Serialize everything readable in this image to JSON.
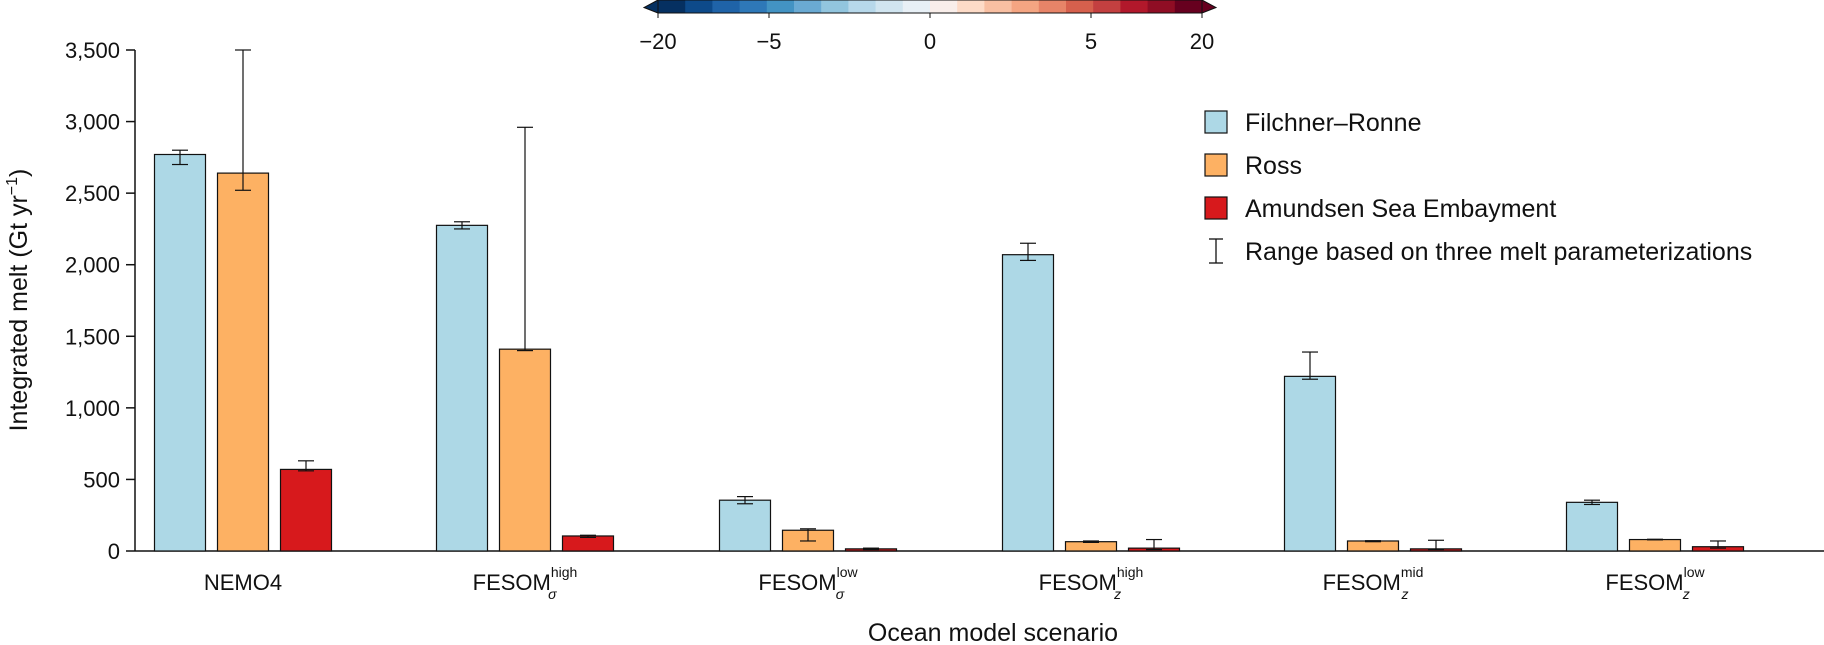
{
  "chart_data": {
    "type": "bar",
    "xlabel": "Ocean model scenario",
    "ylabel": "Integrated melt (Gt yr",
    "ylabel_sup": "−1",
    "ylabel_end": ")",
    "ylim": [
      0,
      3500
    ],
    "yticks": [
      0,
      500,
      1000,
      1500,
      2000,
      2500,
      3000,
      3500
    ],
    "ytick_labels": [
      "0",
      "500",
      "1,000",
      "1,500",
      "2,000",
      "2,500",
      "3,000",
      "3,500"
    ],
    "categories": [
      {
        "base": "NEMO4",
        "sup": "",
        "sub": ""
      },
      {
        "base": "FESOM",
        "sup": "high",
        "sub": "σ"
      },
      {
        "base": "FESOM",
        "sup": "low",
        "sub": "σ"
      },
      {
        "base": "FESOM",
        "sup": "high",
        "sub": "z"
      },
      {
        "base": "FESOM",
        "sup": "mid",
        "sub": "z"
      },
      {
        "base": "FESOM",
        "sup": "low",
        "sub": "z"
      }
    ],
    "series": [
      {
        "name": "Filchner–Ronne",
        "color": "#add8e6",
        "values": [
          2770,
          2275,
          355,
          2070,
          1220,
          340
        ],
        "err_low": [
          2700,
          2250,
          330,
          2030,
          1200,
          325
        ],
        "err_high": [
          2800,
          2300,
          380,
          2150,
          1390,
          355
        ]
      },
      {
        "name": "Ross",
        "color": "#fdb163",
        "values": [
          2640,
          1410,
          145,
          65,
          70,
          80
        ],
        "err_low": [
          2520,
          1400,
          70,
          60,
          65,
          78
        ],
        "err_high": [
          3500,
          2960,
          155,
          70,
          72,
          82
        ]
      },
      {
        "name": "Amundsen Sea Embayment",
        "color": "#d7191c",
        "values": [
          570,
          105,
          15,
          20,
          15,
          30
        ],
        "err_low": [
          560,
          95,
          10,
          10,
          10,
          20
        ],
        "err_high": [
          630,
          110,
          20,
          80,
          75,
          70
        ]
      }
    ],
    "legend_extra": "Range based on three melt parameterizations",
    "legend_position": "top-right",
    "colorbar": {
      "ticks": [
        "−20",
        "−5",
        "0",
        "5",
        "20"
      ],
      "colors": [
        "#053061",
        "#0d4a8a",
        "#1f63a8",
        "#2e78b8",
        "#4393c3",
        "#6aaad3",
        "#92c5de",
        "#b7d8ea",
        "#d1e5f0",
        "#e8f0f6",
        "#f9eeea",
        "#fddbc7",
        "#f8bfa2",
        "#f4a582",
        "#e78468",
        "#d6604d",
        "#c34040",
        "#b2182b",
        "#8f0d24",
        "#67001f"
      ]
    }
  }
}
